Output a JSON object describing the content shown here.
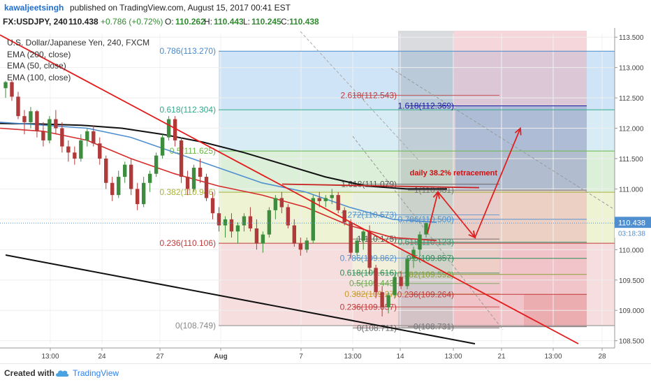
{
  "header": {
    "author": "kawaljeetsingh",
    "published_text": "published on TradingView.com, August 15, 2017 00:41 EST"
  },
  "symbol_line": {
    "symbol": "FX:USDJPY, 240",
    "last": "110.438",
    "change": "+0.786 (+0.72%)",
    "ohlc": [
      {
        "label": "O:",
        "value": "110.262"
      },
      {
        "label": "H:",
        "value": "110.443"
      },
      {
        "label": "L:",
        "value": "110.245"
      },
      {
        "label": "C:",
        "value": "110.438"
      }
    ]
  },
  "legend": [
    "U.S. Dollar/Japanese Yen, 240, FXCM",
    "EMA (200, close)",
    "EMA (50, close)",
    "EMA (100, close)"
  ],
  "footer": {
    "created_with": "Created with",
    "brand": "TradingView"
  },
  "colors": {
    "up": "#3e8d3e",
    "down": "#b03a3a",
    "ema200": "#111111",
    "ema50": "#d62a2a",
    "ema100": "#4f8fd0",
    "trend": "#e31b1b",
    "support_line": "#111111"
  },
  "chart_data": {
    "type": "candlestick",
    "x_ticks": [
      "13:00",
      "24",
      "27",
      "Aug",
      "7",
      "13:00",
      "14",
      "13:00",
      "21",
      "13:00",
      "28"
    ],
    "y_ticks": [
      "113.500",
      "113.000",
      "112.500",
      "112.000",
      "111.500",
      "111.000",
      "110.500",
      "110.000",
      "109.500",
      "109.000",
      "108.500"
    ],
    "ylim": [
      108.45,
      113.56
    ],
    "price_label": "110.438",
    "countdown_label": "03:18:38",
    "series": [
      {
        "name": "EMA (200, close)",
        "values": [
          112.08,
          112.07,
          112.05,
          112.0,
          111.9,
          111.77,
          111.6,
          111.4,
          111.2,
          111.05,
          111.0,
          111.0
        ]
      },
      {
        "name": "EMA (50, close)",
        "values": [
          112.0,
          111.95,
          111.8,
          111.5,
          111.25,
          111.05,
          110.9,
          110.7,
          110.4,
          110.2,
          110.15
        ]
      },
      {
        "name": "EMA (100, close)",
        "values": [
          112.1,
          112.05,
          112.0,
          111.85,
          111.6,
          111.35,
          111.1,
          110.95,
          110.7,
          110.5,
          110.45
        ]
      }
    ],
    "fib_left": [
      {
        "label": "0.786(113.270)",
        "value": 113.27
      },
      {
        "label": "0.618(112.304)",
        "value": 112.304
      },
      {
        "label": "0.5(111.625)",
        "value": 111.625
      },
      {
        "label": "0.382(110.946)",
        "value": 110.946
      },
      {
        "label": "0.236(110.106)",
        "value": 110.106
      },
      {
        "label": "0(108.749)",
        "value": 108.749
      }
    ],
    "fib_mid": [
      {
        "label": "2.618(112.543)",
        "value": 112.543
      },
      {
        "label": "1.618(111.079)",
        "value": 111.079
      },
      {
        "label": "1.272(110.573)",
        "value": 110.573
      },
      {
        "label": "1(110.175)",
        "value": 110.175
      },
      {
        "label": "0.786(109.862)",
        "value": 109.862
      },
      {
        "label": "0.618(109.616)",
        "value": 109.616
      },
      {
        "label": "0.5(109.443)",
        "value": 109.443
      },
      {
        "label": "0.382(109.27)",
        "value": 109.27
      },
      {
        "label": "0.236(109.057)",
        "value": 109.057
      },
      {
        "label": "0(108.711)",
        "value": 108.711
      }
    ],
    "fib_right": [
      {
        "label": "1.618(112.369)",
        "value": 112.369
      },
      {
        "label": "1(110.981)",
        "value": 110.981
      },
      {
        "label": "0.786(110.500)",
        "value": 110.5
      },
      {
        "label": "0.618(110.123)",
        "value": 110.123
      },
      {
        "label": "0.5(109.857)",
        "value": 109.857
      },
      {
        "label": "0.382(109.592)",
        "value": 109.592
      },
      {
        "label": "0.236(109.264)",
        "value": 109.264
      },
      {
        "label": "0(108.731)",
        "value": 108.731
      }
    ],
    "annotations": [
      "daily 38.2% retracement"
    ],
    "candles": [
      [
        112.66,
        112.78,
        112.5,
        112.76
      ],
      [
        112.76,
        112.8,
        112.45,
        112.52
      ],
      [
        112.52,
        112.6,
        112.15,
        112.2
      ],
      [
        112.2,
        112.3,
        111.9,
        112.1
      ],
      [
        112.1,
        112.35,
        112.0,
        112.28
      ],
      [
        112.28,
        112.3,
        111.85,
        111.95
      ],
      [
        111.95,
        112.1,
        111.7,
        111.8
      ],
      [
        111.8,
        112.2,
        111.75,
        112.15
      ],
      [
        112.15,
        112.3,
        111.9,
        112.0
      ],
      [
        112.0,
        112.1,
        111.6,
        111.7
      ],
      [
        111.7,
        111.8,
        111.45,
        111.6
      ],
      [
        111.6,
        111.7,
        111.4,
        111.5
      ],
      [
        111.5,
        111.9,
        111.45,
        111.8
      ],
      [
        111.8,
        112.0,
        111.7,
        111.95
      ],
      [
        111.95,
        112.05,
        111.7,
        111.75
      ],
      [
        111.75,
        111.85,
        111.4,
        111.5
      ],
      [
        111.5,
        111.55,
        111.0,
        111.1
      ],
      [
        111.1,
        111.2,
        110.8,
        110.9
      ],
      [
        110.9,
        111.3,
        110.85,
        111.2
      ],
      [
        111.2,
        111.45,
        111.1,
        111.4
      ],
      [
        111.4,
        111.5,
        110.9,
        111.0
      ],
      [
        111.0,
        111.1,
        110.65,
        110.75
      ],
      [
        110.75,
        111.2,
        110.7,
        111.1
      ],
      [
        111.1,
        111.3,
        110.95,
        111.25
      ],
      [
        111.25,
        111.6,
        111.2,
        111.55
      ],
      [
        111.55,
        111.9,
        111.5,
        111.85
      ],
      [
        111.85,
        112.2,
        111.8,
        112.15
      ],
      [
        112.15,
        112.2,
        111.7,
        111.8
      ],
      [
        111.8,
        111.85,
        111.1,
        111.2
      ],
      [
        111.2,
        111.3,
        110.9,
        111.0
      ],
      [
        111.0,
        111.4,
        110.95,
        111.35
      ],
      [
        111.35,
        111.5,
        111.1,
        111.2
      ],
      [
        111.2,
        111.25,
        110.8,
        110.85
      ],
      [
        110.85,
        110.95,
        110.5,
        110.6
      ],
      [
        110.6,
        110.7,
        110.3,
        110.4
      ],
      [
        110.4,
        110.55,
        110.2,
        110.5
      ],
      [
        110.5,
        110.6,
        110.2,
        110.3
      ],
      [
        110.3,
        110.45,
        110.1,
        110.4
      ],
      [
        110.4,
        110.6,
        110.3,
        110.55
      ],
      [
        110.55,
        110.7,
        110.3,
        110.35
      ],
      [
        110.35,
        110.5,
        110.0,
        110.1
      ],
      [
        110.1,
        110.3,
        109.95,
        110.25
      ],
      [
        110.25,
        110.7,
        110.2,
        110.65
      ],
      [
        110.65,
        110.9,
        110.5,
        110.85
      ],
      [
        110.85,
        110.95,
        110.6,
        110.7
      ],
      [
        110.7,
        110.75,
        110.35,
        110.4
      ],
      [
        110.4,
        110.5,
        110.05,
        110.1
      ],
      [
        110.1,
        110.2,
        109.9,
        110.0
      ],
      [
        110.0,
        110.2,
        109.95,
        110.15
      ],
      [
        110.15,
        110.9,
        110.1,
        110.85
      ],
      [
        110.85,
        110.95,
        110.7,
        110.8
      ],
      [
        110.8,
        110.9,
        110.7,
        110.85
      ],
      [
        110.85,
        111.0,
        110.75,
        110.9
      ],
      [
        110.9,
        110.95,
        110.6,
        110.65
      ],
      [
        110.65,
        110.7,
        110.4,
        110.45
      ],
      [
        110.45,
        110.5,
        109.85,
        109.95
      ],
      [
        109.95,
        110.2,
        109.9,
        110.15
      ],
      [
        110.15,
        110.35,
        110.0,
        110.3
      ],
      [
        110.3,
        110.4,
        109.6,
        109.7
      ],
      [
        109.7,
        109.75,
        109.2,
        109.3
      ],
      [
        109.3,
        109.4,
        108.9,
        109.05
      ],
      [
        109.05,
        109.3,
        108.95,
        109.25
      ],
      [
        109.25,
        109.6,
        109.2,
        109.55
      ],
      [
        109.55,
        109.65,
        109.35,
        109.4
      ],
      [
        109.4,
        109.9,
        109.35,
        109.85
      ],
      [
        109.85,
        110.05,
        109.7,
        110.0
      ],
      [
        110.0,
        110.3,
        109.9,
        110.25
      ],
      [
        110.25,
        110.45,
        110.2,
        110.44
      ]
    ]
  }
}
